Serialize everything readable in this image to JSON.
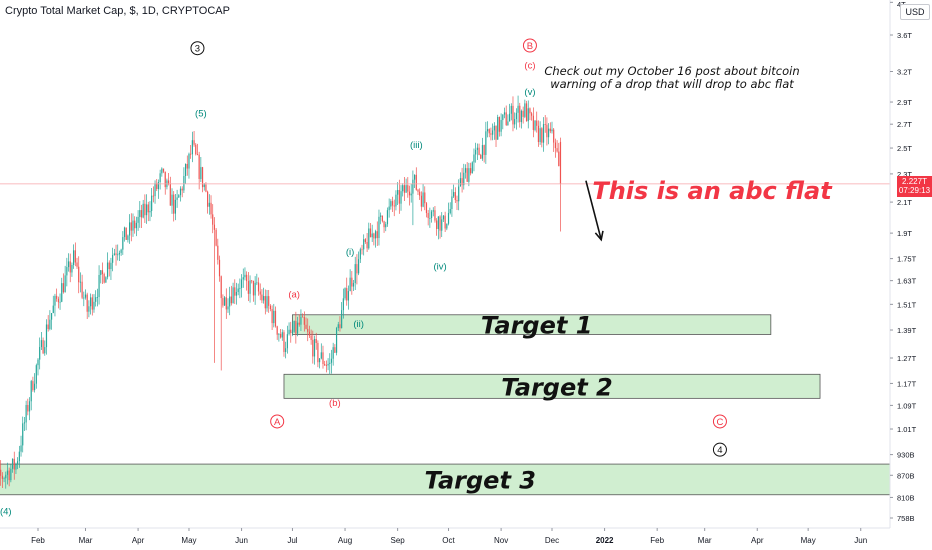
{
  "header": {
    "symbol_title": "Crypto Total Market Cap, $, 1D, CRYPTOCAP",
    "currency_button": "USD"
  },
  "price_tag": {
    "value": "2.227T",
    "countdown": "07:29:13"
  },
  "colors": {
    "up_candle": "#26a69a",
    "down_candle": "#ef5350",
    "zone_fill": "#c8ebc8",
    "zone_stroke": "#555555",
    "red_text": "#f23645",
    "wave_teal": "#00897b",
    "price_line": "#f7a5a9"
  },
  "chart_data": {
    "type": "candlestick",
    "scale": "log",
    "y_unit": "USD",
    "ylim_T": [
      0.55,
      4.0
    ],
    "y_ticks": [
      {
        "label": "4T",
        "value": 4.0
      },
      {
        "label": "3.6T",
        "value": 3.6
      },
      {
        "label": "3.2T",
        "value": 3.2
      },
      {
        "label": "2.9T",
        "value": 2.9
      },
      {
        "label": "2.7T",
        "value": 2.7
      },
      {
        "label": "2.5T",
        "value": 2.5
      },
      {
        "label": "2.3T",
        "value": 2.3
      },
      {
        "label": "2.1T",
        "value": 2.1
      },
      {
        "label": "1.9T",
        "value": 1.9
      },
      {
        "label": "1.75T",
        "value": 1.75
      },
      {
        "label": "1.63T",
        "value": 1.63
      },
      {
        "label": "1.51T",
        "value": 1.51
      },
      {
        "label": "1.39T",
        "value": 1.39
      },
      {
        "label": "1.27T",
        "value": 1.27
      },
      {
        "label": "1.17T",
        "value": 1.17
      },
      {
        "label": "1.09T",
        "value": 1.09
      },
      {
        "label": "1.01T",
        "value": 1.01
      },
      {
        "label": "930B",
        "value": 0.93
      },
      {
        "label": "870B",
        "value": 0.87
      },
      {
        "label": "810B",
        "value": 0.81
      },
      {
        "label": "758B",
        "value": 0.758
      }
    ],
    "x_ticks": [
      {
        "label": "Feb",
        "day": 31,
        "bold": false
      },
      {
        "label": "Mar",
        "day": 59,
        "bold": false
      },
      {
        "label": "Apr",
        "day": 90,
        "bold": false
      },
      {
        "label": "May",
        "day": 120,
        "bold": false
      },
      {
        "label": "Jun",
        "day": 151,
        "bold": false
      },
      {
        "label": "Jul",
        "day": 181,
        "bold": false
      },
      {
        "label": "Aug",
        "day": 212,
        "bold": false
      },
      {
        "label": "Sep",
        "day": 243,
        "bold": false
      },
      {
        "label": "Oct",
        "day": 273,
        "bold": false
      },
      {
        "label": "Nov",
        "day": 304,
        "bold": false
      },
      {
        "label": "Dec",
        "day": 334,
        "bold": false
      },
      {
        "label": "2022",
        "day": 365,
        "bold": true
      },
      {
        "label": "Feb",
        "day": 396,
        "bold": false
      },
      {
        "label": "Mar",
        "day": 424,
        "bold": false
      },
      {
        "label": "Apr",
        "day": 455,
        "bold": false
      },
      {
        "label": "May",
        "day": 485,
        "bold": false
      },
      {
        "label": "Jun",
        "day": 516,
        "bold": false
      }
    ],
    "xlim_days": [
      0,
      530
    ],
    "last_candle_day": 339,
    "current_price_T": 2.227,
    "closes_anchor": [
      {
        "day": 0,
        "close": 0.95
      },
      {
        "day": 8,
        "close": 0.86
      },
      {
        "day": 18,
        "close": 0.9
      },
      {
        "day": 28,
        "close": 1.18
      },
      {
        "day": 38,
        "close": 1.45
      },
      {
        "day": 52,
        "close": 1.75
      },
      {
        "day": 60,
        "close": 1.48
      },
      {
        "day": 75,
        "close": 1.78
      },
      {
        "day": 95,
        "close": 2.05
      },
      {
        "day": 104,
        "close": 2.28
      },
      {
        "day": 112,
        "close": 2.05
      },
      {
        "day": 122,
        "close": 2.5
      },
      {
        "day": 132,
        "close": 2.1
      },
      {
        "day": 140,
        "close": 1.52
      },
      {
        "day": 150,
        "close": 1.62
      },
      {
        "day": 160,
        "close": 1.58
      },
      {
        "day": 168,
        "close": 1.48
      },
      {
        "day": 176,
        "close": 1.33
      },
      {
        "day": 186,
        "close": 1.42
      },
      {
        "day": 196,
        "close": 1.28
      },
      {
        "day": 203,
        "close": 1.24
      },
      {
        "day": 213,
        "close": 1.58
      },
      {
        "day": 225,
        "close": 1.85
      },
      {
        "day": 240,
        "close": 2.07
      },
      {
        "day": 252,
        "close": 2.25
      },
      {
        "day": 262,
        "close": 2.04
      },
      {
        "day": 270,
        "close": 1.95
      },
      {
        "day": 283,
        "close": 2.3
      },
      {
        "day": 297,
        "close": 2.6
      },
      {
        "day": 309,
        "close": 2.78
      },
      {
        "day": 318,
        "close": 2.82
      },
      {
        "day": 325,
        "close": 2.62
      },
      {
        "day": 332,
        "close": 2.62
      },
      {
        "day": 336,
        "close": 2.55
      },
      {
        "day": 339,
        "close": 2.227
      }
    ],
    "low_spikes": [
      {
        "day": 135,
        "low": 1.25
      },
      {
        "day": 139,
        "low": 1.22
      },
      {
        "day": 252,
        "low": 1.95
      },
      {
        "day": 339,
        "low": 1.91
      },
      {
        "day": 3,
        "low": 0.81
      }
    ],
    "zones": [
      {
        "label": "Target 1",
        "day_start": 181,
        "day_end": 463,
        "top_T": 1.46,
        "bottom_T": 1.37
      },
      {
        "label": "Target 2",
        "day_start": 176,
        "day_end": 492,
        "top_T": 1.205,
        "bottom_T": 1.115
      },
      {
        "label": "Target 3",
        "day_start": 5,
        "day_end": 543,
        "top_T": 0.902,
        "bottom_T": 0.817
      }
    ],
    "wave_labels": [
      {
        "text": "(4)",
        "day": 12,
        "value_T": 0.775,
        "color": "teal",
        "circled": false
      },
      {
        "text": ")",
        "day": 0,
        "value_T": 1.15,
        "color": "teal",
        "circled": false
      },
      {
        "text": "3",
        "day": 125,
        "value_T": 3.45,
        "color": "black",
        "circled": true
      },
      {
        "text": "(5)",
        "day": 127,
        "value_T": 2.8,
        "color": "teal",
        "circled": false
      },
      {
        "text": "(a)",
        "day": 182,
        "value_T": 1.56,
        "color": "red",
        "circled": false
      },
      {
        "text": "A",
        "day": 172,
        "value_T": 1.035,
        "color": "red",
        "circled": true
      },
      {
        "text": "(b)",
        "day": 206,
        "value_T": 1.1,
        "color": "red",
        "circled": false
      },
      {
        "text": "(i)",
        "day": 215,
        "value_T": 1.79,
        "color": "teal",
        "circled": false
      },
      {
        "text": "(ii)",
        "day": 220,
        "value_T": 1.42,
        "color": "teal",
        "circled": false
      },
      {
        "text": "(iii)",
        "day": 254,
        "value_T": 2.53,
        "color": "teal",
        "circled": false
      },
      {
        "text": "(iv)",
        "day": 268,
        "value_T": 1.71,
        "color": "teal",
        "circled": false
      },
      {
        "text": "B",
        "day": 321,
        "value_T": 3.48,
        "color": "red",
        "circled": true
      },
      {
        "text": "(c)",
        "day": 321,
        "value_T": 3.27,
        "color": "red",
        "circled": false
      },
      {
        "text": "(v)",
        "day": 321,
        "value_T": 3.0,
        "color": "teal",
        "circled": false
      },
      {
        "text": "C",
        "day": 433,
        "value_T": 1.035,
        "color": "red",
        "circled": true
      },
      {
        "text": "4",
        "day": 433,
        "value_T": 0.945,
        "color": "black",
        "circled": true
      }
    ],
    "annotations": {
      "note_line1": "Check out my October 16 post about bitcoin",
      "note_line2": "warning of a drop that will drop to abc flat",
      "headline": "This is an abc flat"
    },
    "arrow": {
      "from_day": 354,
      "from_T": 2.25,
      "to_day": 363,
      "to_T": 1.86
    }
  }
}
